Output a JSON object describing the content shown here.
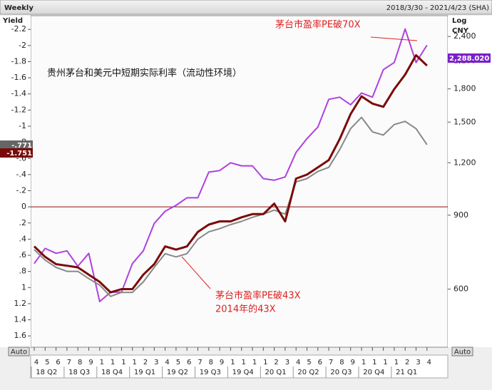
{
  "chart_data": {
    "type": "line",
    "header_left": "Weekly",
    "header_right": "2018/3/30 - 2021/4/23 (SHA)",
    "title": "贵州茅台和美元中短期实际利率（流动性环境）",
    "annotations": [
      "茅台市盈率PE破70X",
      "茅台市盈率PE破43X",
      "2014年的43X"
    ],
    "y_label": "Yield",
    "y2_label": "Log",
    "y2_unit": "CNY",
    "autoscale_label": "Auto",
    "x": [
      "2018-04",
      "2018-05",
      "2018-06",
      "2018-07",
      "2018-08",
      "2018-09",
      "2018-10",
      "2018-11",
      "2018-12",
      "2019-01",
      "2019-02",
      "2019-03",
      "2019-04",
      "2019-05",
      "2019-06",
      "2019-07",
      "2019-08",
      "2019-09",
      "2019-10",
      "2019-11",
      "2019-12",
      "2020-01",
      "2020-02",
      "2020-03",
      "2020-04",
      "2020-05",
      "2020-06",
      "2020-07",
      "2020-08",
      "2020-09",
      "2020-10",
      "2020-11",
      "2020-12",
      "2021-01",
      "2021-02",
      "2021-03",
      "2021-04"
    ],
    "month_labels": [
      "4",
      "5",
      "6",
      "7",
      "8",
      "9",
      "1",
      "1",
      "1",
      "1",
      "2",
      "3",
      "4",
      "5",
      "6",
      "7",
      "8",
      "9",
      "1",
      "1",
      "1",
      "1",
      "2",
      "3",
      "4",
      "5",
      "6",
      "7",
      "8",
      "9",
      "1",
      "1",
      "1",
      "1",
      "2",
      "3",
      "4"
    ],
    "quarters": [
      "18 Q2",
      "18 Q3",
      "18 Q4",
      "19 Q1",
      "19 Q2",
      "19 Q3",
      "19 Q4",
      "20 Q1",
      "20 Q2",
      "20 Q3",
      "20 Q4",
      "21 Q1"
    ],
    "ylim": [
      1.74,
      -2.37
    ],
    "yticks": [
      -2.2,
      -2,
      -1.8,
      -1.6,
      -1.4,
      -1.2,
      -1,
      {
        "value": -0.8,
        "label": "-.8"
      },
      {
        "value": -0.6,
        "label": "-.6"
      },
      {
        "value": -0.4,
        "label": "-.4"
      },
      {
        "value": -0.2,
        "label": "-.2"
      },
      0,
      {
        "value": 0.2,
        "label": ".2"
      },
      {
        "value": 0.4,
        "label": ".4"
      },
      {
        "value": 0.6,
        "label": ".6"
      },
      {
        "value": 0.8,
        "label": ".8"
      },
      1,
      1.2,
      1.4,
      1.6
    ],
    "hline": 0,
    "y2lim": [
      436,
      2690
    ],
    "y2_log": true,
    "y2ticks": [
      600,
      900,
      {
        "value": 1200,
        "label": "1,200"
      },
      {
        "value": 1500,
        "label": "1,500"
      },
      {
        "value": 1800,
        "label": "1,800"
      },
      {
        "value": 2100,
        "label": "2,100"
      },
      {
        "value": 2400,
        "label": "2,400"
      }
    ],
    "series": [
      {
        "color": "#7a0a0a",
        "axis": "y",
        "width": 3,
        "last_label": "-1.751",
        "values": [
          0.49,
          0.62,
          0.71,
          0.73,
          0.75,
          0.84,
          0.93,
          1.06,
          1.02,
          1.02,
          0.84,
          0.71,
          0.49,
          0.53,
          0.49,
          0.31,
          0.22,
          0.18,
          0.18,
          0.13,
          0.09,
          0.09,
          -0.04,
          0.18,
          -0.35,
          -0.4,
          -0.49,
          -0.58,
          -0.84,
          -1.15,
          -1.37,
          -1.28,
          -1.24,
          -1.46,
          -1.64,
          -1.88,
          -1.751
        ]
      },
      {
        "color": "#888888",
        "axis": "y",
        "width": 2,
        "last_label": "-.771",
        "values": [
          0.53,
          0.66,
          0.75,
          0.8,
          0.8,
          0.89,
          0.97,
          1.11,
          1.06,
          1.06,
          0.93,
          0.75,
          0.58,
          0.62,
          0.58,
          0.4,
          0.31,
          0.27,
          0.22,
          0.18,
          0.13,
          0.09,
          0.04,
          0.09,
          -0.31,
          -0.35,
          -0.44,
          -0.49,
          -0.71,
          -0.97,
          -1.11,
          -0.93,
          -0.89,
          -1.02,
          -1.06,
          -0.97,
          -0.771
        ]
      },
      {
        "color": "#b040e0",
        "axis": "y2",
        "width": 2,
        "last_label": "2,288.020",
        "values": [
          690,
          750,
          730,
          740,
          680,
          730,
          560,
          590,
          590,
          690,
          740,
          860,
          920,
          950,
          990,
          990,
          1140,
          1150,
          1200,
          1180,
          1180,
          1100,
          1090,
          1110,
          1270,
          1370,
          1460,
          1700,
          1720,
          1650,
          1760,
          1720,
          2000,
          2080,
          2500,
          2080,
          2288.02
        ]
      }
    ]
  }
}
